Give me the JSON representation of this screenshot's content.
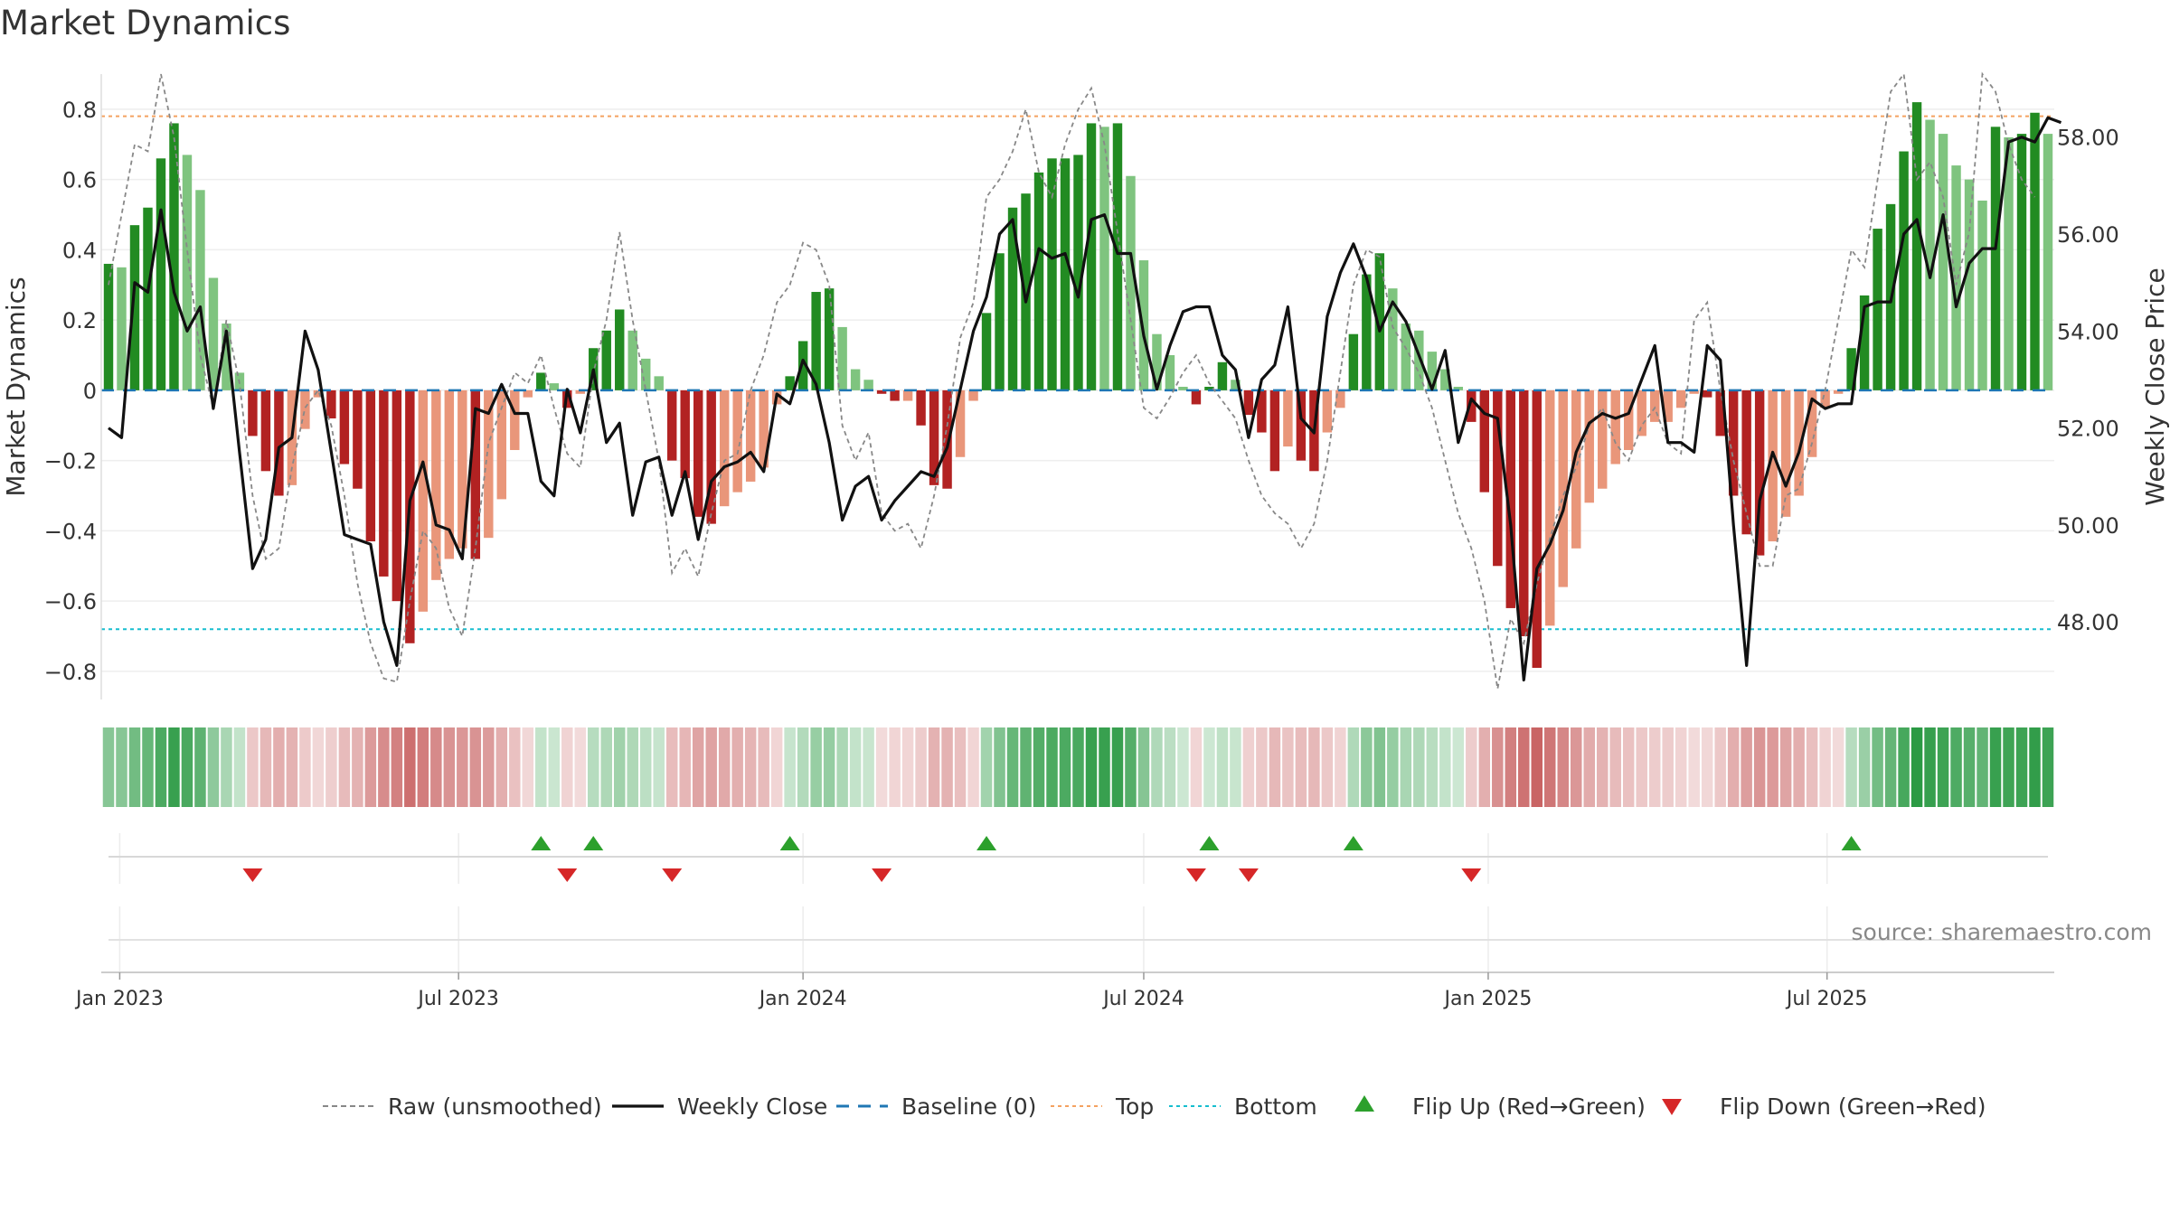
{
  "chart_data": {
    "type": "bar",
    "title": "Market Dynamics",
    "ylabel": "Market Dynamics",
    "y2label": "Weekly Close Price",
    "ylim": [
      -0.88,
      0.9
    ],
    "y2lim": [
      46.4,
      59.3
    ],
    "yticks": [
      0.8,
      0.6,
      0.4,
      0.2,
      0,
      -0.2,
      -0.4,
      -0.6,
      -0.8
    ],
    "ytick_labels": [
      "0.8",
      "0.6",
      "0.4",
      "0.2",
      "0",
      "−0.2",
      "−0.4",
      "−0.6",
      "−0.8"
    ],
    "y2ticks": [
      58,
      56,
      54,
      52,
      50,
      48
    ],
    "y2tick_labels": [
      "58.00",
      "56.00",
      "54.00",
      "52.00",
      "50.00",
      "48.00"
    ],
    "date_ticks": [
      {
        "date": "2023-01-01",
        "label": "Jan 2023"
      },
      {
        "date": "2023-07-01",
        "label": "Jul 2023"
      },
      {
        "date": "2024-01-01",
        "label": "Jan 2024"
      },
      {
        "date": "2024-07-01",
        "label": "Jul 2024"
      },
      {
        "date": "2025-01-01",
        "label": "Jan 2025"
      },
      {
        "date": "2025-07-01",
        "label": "Jul 2025"
      }
    ],
    "first_week": "2022-12-26",
    "top_level": 0.78,
    "bottom_level": -0.68,
    "grid": true,
    "legend_position": "bottom",
    "legend": [
      {
        "label": "Raw (unsmoothed)",
        "kind": "dash-line",
        "color": "#888888"
      },
      {
        "label": "Weekly Close",
        "kind": "line",
        "color": "#111111"
      },
      {
        "label": "Baseline (0)",
        "kind": "dash-line-wide",
        "color": "#1f77b4"
      },
      {
        "label": "Top",
        "kind": "dot-line",
        "color": "#f4a261"
      },
      {
        "label": "Bottom",
        "kind": "dot-line",
        "color": "#17becf"
      },
      {
        "label": "Flip Up (Red→Green)",
        "kind": "triangle-up",
        "color": "#2ca02c"
      },
      {
        "label": "Flip Down (Green→Red)",
        "kind": "triangle-down",
        "color": "#d62728"
      }
    ],
    "colors": {
      "green_dark": "#228b22",
      "green_light": "#7fc47f",
      "red_dark": "#b22222",
      "red_light": "#e9967a",
      "flip_up": "#2ca02c",
      "flip_down": "#d62728"
    },
    "source": "source: sharemaestro.com",
    "dynamics": [
      0.36,
      0.35,
      0.47,
      0.52,
      0.66,
      0.76,
      0.67,
      0.57,
      0.32,
      0.19,
      0.05,
      -0.13,
      -0.23,
      -0.3,
      -0.27,
      -0.11,
      -0.02,
      -0.08,
      -0.21,
      -0.28,
      -0.43,
      -0.53,
      -0.6,
      -0.72,
      -0.63,
      -0.54,
      -0.48,
      -0.45,
      -0.48,
      -0.42,
      -0.31,
      -0.17,
      -0.02,
      0.05,
      0.02,
      -0.05,
      -0.01,
      0.12,
      0.17,
      0.23,
      0.17,
      0.09,
      0.04,
      -0.2,
      -0.25,
      -0.36,
      -0.38,
      -0.33,
      -0.29,
      -0.26,
      -0.22,
      -0.04,
      0.04,
      0.14,
      0.28,
      0.29,
      0.18,
      0.06,
      0.03,
      -0.01,
      -0.03,
      -0.03,
      -0.1,
      -0.27,
      -0.28,
      -0.19,
      -0.03,
      0.22,
      0.39,
      0.52,
      0.56,
      0.62,
      0.66,
      0.66,
      0.67,
      0.76,
      0.75,
      0.76,
      0.61,
      0.37,
      0.16,
      0.1,
      0.01,
      -0.04,
      0.01,
      0.08,
      0.03,
      -0.07,
      -0.12,
      -0.23,
      -0.16,
      -0.2,
      -0.23,
      -0.12,
      -0.05,
      0.16,
      0.33,
      0.39,
      0.29,
      0.19,
      0.17,
      0.11,
      0.06,
      0.01,
      -0.09,
      -0.29,
      -0.5,
      -0.62,
      -0.7,
      -0.79,
      -0.67,
      -0.56,
      -0.45,
      -0.32,
      -0.28,
      -0.21,
      -0.17,
      -0.13,
      -0.09,
      -0.09,
      -0.05,
      -0.01,
      -0.02,
      -0.13,
      -0.3,
      -0.41,
      -0.47,
      -0.43,
      -0.36,
      -0.3,
      -0.19,
      -0.05,
      -0.01,
      0.12,
      0.27,
      0.46,
      0.53,
      0.68,
      0.82,
      0.77,
      0.73,
      0.64,
      0.6,
      0.54,
      0.75,
      0.72,
      0.73,
      0.79,
      0.73
    ],
    "raw": [
      0.3,
      0.5,
      0.7,
      0.68,
      0.9,
      0.72,
      0.4,
      0.1,
      -0.05,
      0.2,
      0.02,
      -0.3,
      -0.48,
      -0.45,
      -0.22,
      -0.05,
      0.0,
      -0.1,
      -0.3,
      -0.55,
      -0.72,
      -0.82,
      -0.83,
      -0.6,
      -0.4,
      -0.45,
      -0.62,
      -0.7,
      -0.45,
      -0.15,
      -0.05,
      0.05,
      0.02,
      0.1,
      -0.05,
      -0.18,
      -0.22,
      0.05,
      0.2,
      0.45,
      0.2,
      0.0,
      -0.2,
      -0.52,
      -0.45,
      -0.53,
      -0.35,
      -0.2,
      -0.18,
      0.0,
      0.1,
      0.25,
      0.3,
      0.42,
      0.4,
      0.3,
      -0.1,
      -0.2,
      -0.12,
      -0.35,
      -0.4,
      -0.38,
      -0.45,
      -0.3,
      -0.1,
      0.15,
      0.25,
      0.55,
      0.6,
      0.68,
      0.8,
      0.62,
      0.55,
      0.7,
      0.8,
      0.86,
      0.7,
      0.45,
      0.2,
      -0.05,
      -0.08,
      -0.02,
      0.05,
      0.1,
      0.02,
      -0.03,
      -0.08,
      -0.2,
      -0.3,
      -0.35,
      -0.38,
      -0.45,
      -0.38,
      -0.2,
      0.05,
      0.3,
      0.4,
      0.38,
      0.18,
      0.12,
      0.05,
      -0.05,
      -0.2,
      -0.35,
      -0.45,
      -0.6,
      -0.85,
      -0.65,
      -0.72,
      -0.55,
      -0.42,
      -0.3,
      -0.22,
      -0.1,
      -0.05,
      -0.15,
      -0.2,
      -0.1,
      -0.05,
      -0.15,
      -0.18,
      0.2,
      0.25,
      0.0,
      -0.2,
      -0.35,
      -0.5,
      -0.5,
      -0.3,
      -0.28,
      -0.15,
      0.0,
      0.2,
      0.4,
      0.35,
      0.6,
      0.85,
      0.9,
      0.6,
      0.65,
      0.55,
      0.3,
      0.45,
      0.9,
      0.85,
      0.7,
      0.6,
      0.55
    ],
    "close": [
      52.0,
      51.8,
      55.0,
      54.8,
      56.5,
      54.8,
      54.0,
      54.5,
      52.4,
      54.0,
      51.5,
      49.1,
      49.7,
      51.6,
      51.8,
      54.0,
      53.2,
      51.5,
      49.8,
      49.7,
      49.6,
      48.0,
      47.1,
      50.5,
      51.3,
      50.0,
      49.9,
      49.3,
      52.4,
      52.3,
      52.9,
      52.3,
      52.3,
      50.9,
      50.6,
      52.8,
      51.9,
      53.2,
      51.7,
      52.1,
      50.2,
      51.3,
      51.4,
      50.2,
      51.1,
      49.7,
      50.9,
      51.2,
      51.3,
      51.5,
      51.1,
      52.7,
      52.5,
      53.4,
      52.9,
      51.7,
      50.1,
      50.8,
      51.0,
      50.1,
      50.5,
      50.8,
      51.1,
      51.0,
      51.6,
      52.8,
      54.0,
      54.7,
      56.0,
      56.3,
      54.6,
      55.7,
      55.5,
      55.6,
      54.7,
      56.3,
      56.4,
      55.6,
      55.6,
      53.9,
      52.8,
      53.7,
      54.4,
      54.5,
      54.5,
      53.5,
      53.2,
      51.8,
      53.0,
      53.3,
      54.5,
      52.2,
      51.9,
      54.3,
      55.2,
      55.8,
      55.1,
      54.0,
      54.6,
      54.2,
      53.5,
      52.8,
      53.6,
      51.7,
      52.6,
      52.3,
      52.2,
      50.0,
      46.8,
      49.1,
      49.6,
      50.3,
      51.5,
      52.1,
      52.3,
      52.2,
      52.3,
      53.0,
      53.7,
      51.7,
      51.7,
      51.5,
      53.7,
      53.4,
      50.0,
      47.1,
      50.5,
      51.5,
      50.8,
      51.5,
      52.6,
      52.4,
      52.5,
      52.5,
      54.5,
      54.6,
      54.6,
      56.0,
      56.3,
      55.1,
      56.4,
      54.5,
      55.4,
      55.7,
      55.7,
      57.9,
      58.0,
      57.9,
      58.4,
      58.3
    ]
  }
}
